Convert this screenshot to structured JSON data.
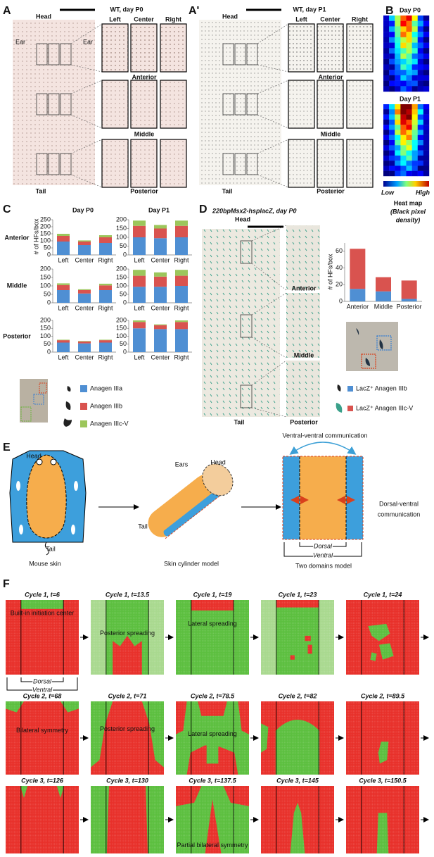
{
  "panels": {
    "A": {
      "letter": "A",
      "title": "WT, day P0",
      "head": "Head",
      "ear_left": "Ear",
      "ear_right": "Ear",
      "tail": "Tail",
      "columns": [
        "Left",
        "Center",
        "Right"
      ],
      "rows": [
        "Anterior",
        "Middle",
        "Posterior"
      ]
    },
    "A2": {
      "letter": "A'",
      "title": "WT, day P1",
      "head": "Head",
      "tail": "Tail",
      "columns": [
        "Left",
        "Center",
        "Right"
      ],
      "rows": [
        "Anterior",
        "Middle",
        "Posterior"
      ]
    },
    "B": {
      "letter": "B",
      "day_p0": "Day P0",
      "day_p1": "Day P1",
      "low": "Low",
      "high": "High",
      "caption": [
        "Heat map",
        "(Black pixel",
        "density)"
      ]
    },
    "C": {
      "letter": "C",
      "columns": [
        "Day P0",
        "Day P1"
      ],
      "rows": [
        "Anterior",
        "Middle",
        "Posterior"
      ],
      "y_label": "# of HFs/box",
      "legend": [
        {
          "name": "Anagen IIIa",
          "color": "#4f8fd3"
        },
        {
          "name": "Anagen IIIb",
          "color": "#d9534f"
        },
        {
          "name": "Anagen IIIc-V",
          "color": "#9cc65b"
        }
      ]
    },
    "D": {
      "letter": "D",
      "title": "220bpMsx2-hsplacZ, day P0",
      "head": "Head",
      "tail": "Tail",
      "rows": [
        "Anterior",
        "Middle",
        "Posterior"
      ],
      "y_label": "# of HFs/box",
      "legend": [
        {
          "name": "LacZ⁺ Anagen IIIb",
          "color": "#4f8fd3"
        },
        {
          "name": "LacZ⁺ Anagen IIIc-V",
          "color": "#d9534f"
        }
      ]
    },
    "E": {
      "letter": "E",
      "skin_head": "Head",
      "skin_tail": "Tail",
      "skin_caption": "Mouse skin",
      "cyl_ears": "Ears",
      "cyl_head": "Head",
      "cyl_tail": "Tail",
      "cyl_caption": "Skin cylinder model",
      "vv": "Ventral-ventral communication",
      "dv": [
        "Dorsal-ventral",
        "communication"
      ],
      "dorsal": "Dorsal",
      "ventral": "Ventral",
      "domains_caption": "Two domains model"
    },
    "F": {
      "letter": "F",
      "dorsal": "Dorsal",
      "ventral": "Ventral",
      "frames": [
        {
          "title": "Cycle 1, t=6",
          "note": "Built-in initiation center"
        },
        {
          "title": "Cycle 1, t=13.5",
          "note": "Posterior spreading"
        },
        {
          "title": "Cycle 1, t=19",
          "note": "Lateral spreading"
        },
        {
          "title": "Cycle 1, t=23"
        },
        {
          "title": "Cycle 1, t=24"
        },
        {
          "title": "Cycle 2, t=68",
          "note": "Bilateral symmetry"
        },
        {
          "title": "Cycle 2, t=71",
          "note": "Posterior spreading"
        },
        {
          "title": "Cycle 2, t=78.5",
          "note": "Lateral spreading"
        },
        {
          "title": "Cycle 2, t=82"
        },
        {
          "title": "Cycle 2, t=89.5"
        },
        {
          "title": "Cycle 3, t=126"
        },
        {
          "title": "Cycle 3, t=130"
        },
        {
          "title": "Cycle 3, t=137.5",
          "note": "Partial bilateral symmetry"
        },
        {
          "title": "Cycle 3, t=145"
        },
        {
          "title": "Cycle 3, t=150.5"
        }
      ]
    }
  },
  "chart_data": [
    {
      "type": "bar",
      "stacked": true,
      "categories": [
        "Left",
        "Center",
        "Right"
      ],
      "ylim": [
        0,
        250
      ],
      "yticks": [
        0,
        50,
        100,
        150,
        200,
        250
      ],
      "grid": false,
      "series": [
        {
          "color": "#4f8fd3",
          "values": [
            95,
            70,
            85
          ]
        },
        {
          "color": "#d9534f",
          "values": [
            40,
            25,
            40
          ]
        },
        {
          "color": "#9cc65b",
          "values": [
            15,
            8,
            15
          ]
        }
      ]
    },
    {
      "type": "bar",
      "stacked": true,
      "categories": [
        "Left",
        "Center",
        "Right"
      ],
      "ylim": [
        0,
        200
      ],
      "yticks": [
        0,
        50,
        100,
        150,
        200
      ],
      "grid": false,
      "series": [
        {
          "color": "#4f8fd3",
          "values": [
            100,
            95,
            100
          ]
        },
        {
          "color": "#d9534f",
          "values": [
            65,
            55,
            65
          ]
        },
        {
          "color": "#9cc65b",
          "values": [
            30,
            20,
            30
          ]
        }
      ]
    },
    {
      "type": "bar",
      "stacked": true,
      "categories": [
        "Left",
        "Center",
        "Right"
      ],
      "ylim": [
        0,
        200
      ],
      "yticks": [
        0,
        50,
        100,
        150,
        200
      ],
      "grid": false,
      "series": [
        {
          "color": "#4f8fd3",
          "values": [
            75,
            55,
            75
          ]
        },
        {
          "color": "#d9534f",
          "values": [
            30,
            20,
            28
          ]
        },
        {
          "color": "#9cc65b",
          "values": [
            10,
            5,
            10
          ]
        }
      ]
    },
    {
      "type": "bar",
      "stacked": true,
      "categories": [
        "Left",
        "Center",
        "Right"
      ],
      "ylim": [
        0,
        200
      ],
      "yticks": [
        0,
        50,
        100,
        150,
        200
      ],
      "grid": false,
      "series": [
        {
          "color": "#4f8fd3",
          "values": [
            95,
            95,
            100
          ]
        },
        {
          "color": "#d9534f",
          "values": [
            65,
            60,
            60
          ]
        },
        {
          "color": "#9cc65b",
          "values": [
            35,
            25,
            35
          ]
        }
      ]
    },
    {
      "type": "bar",
      "stacked": true,
      "categories": [
        "Left",
        "Center",
        "Right"
      ],
      "ylim": [
        0,
        200
      ],
      "yticks": [
        0,
        50,
        100,
        150,
        200
      ],
      "grid": false,
      "series": [
        {
          "color": "#4f8fd3",
          "values": [
            60,
            55,
            60
          ]
        },
        {
          "color": "#d9534f",
          "values": [
            15,
            12,
            15
          ]
        },
        {
          "color": "#9cc65b",
          "values": [
            3,
            3,
            3
          ]
        }
      ]
    },
    {
      "type": "bar",
      "stacked": true,
      "categories": [
        "Left",
        "Center",
        "Right"
      ],
      "ylim": [
        0,
        200
      ],
      "yticks": [
        0,
        50,
        100,
        150,
        200
      ],
      "grid": false,
      "series": [
        {
          "color": "#4f8fd3",
          "values": [
            150,
            145,
            145
          ]
        },
        {
          "color": "#d9534f",
          "values": [
            40,
            25,
            45
          ]
        },
        {
          "color": "#9cc65b",
          "values": [
            10,
            5,
            10
          ]
        }
      ]
    },
    {
      "type": "bar",
      "stacked": true,
      "categories": [
        "Anterior",
        "Middle",
        "Posterior"
      ],
      "ylim": [
        0,
        70
      ],
      "yticks": [
        0,
        20,
        40,
        60
      ],
      "grid": false,
      "series": [
        {
          "color": "#4f8fd3",
          "values": [
            15,
            12,
            3
          ]
        },
        {
          "color": "#d9534f",
          "values": [
            48,
            17,
            22
          ]
        }
      ]
    }
  ]
}
